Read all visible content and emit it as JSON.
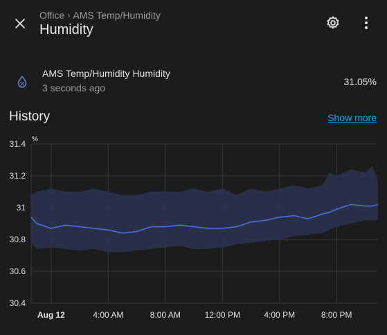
{
  "header": {
    "breadcrumb": [
      "Office",
      "AMS Temp/Humidity"
    ],
    "breadcrumb_separator": "›",
    "title": "Humidity"
  },
  "entity": {
    "icon": "water-percent-icon",
    "name": "AMS Temp/Humidity Humidity",
    "last_changed": "3 seconds ago",
    "state": "31.05%"
  },
  "history": {
    "title": "History",
    "show_more_label": "Show more"
  },
  "colors": {
    "accent": "#03a9f4",
    "series_line": "#4a6fdc",
    "series_band": "#2b3350",
    "icon": "#5a8bd8"
  },
  "chart_data": {
    "type": "line",
    "unit_label": "%",
    "ylim": [
      30.4,
      31.4
    ],
    "y_ticks": [
      "31.4",
      "31.2",
      "31",
      "30.8",
      "30.6",
      "30.4"
    ],
    "y_tick_values": [
      31.4,
      31.2,
      31.0,
      30.8,
      30.6,
      30.4
    ],
    "x_ticks": [
      "Aug 12",
      "4:00 AM",
      "8:00 AM",
      "12:00 PM",
      "4:00 PM",
      "8:00 PM"
    ],
    "x_tick_hours": [
      0,
      4,
      8,
      12,
      16,
      20
    ],
    "x_range_hours": [
      -1.4,
      22.9
    ],
    "grid": true,
    "series": [
      {
        "hours": [
          -1.4,
          -1.0,
          0,
          1,
          2,
          3,
          4,
          5,
          6,
          7,
          8,
          9,
          10,
          11,
          12,
          13,
          14,
          15,
          16,
          17,
          18,
          19,
          19.5,
          20,
          21,
          22,
          22.5,
          22.9
        ],
        "mean": [
          30.94,
          30.9,
          30.87,
          30.89,
          30.88,
          30.87,
          30.86,
          30.84,
          30.85,
          30.88,
          30.88,
          30.89,
          30.88,
          30.87,
          30.87,
          30.88,
          30.91,
          30.92,
          30.94,
          30.95,
          30.93,
          30.96,
          30.97,
          30.99,
          31.02,
          31.01,
          31.01,
          31.02
        ],
        "max": [
          31.08,
          31.1,
          31.12,
          31.1,
          31.1,
          31.12,
          31.1,
          31.08,
          31.08,
          31.1,
          31.1,
          31.1,
          31.12,
          31.1,
          31.12,
          31.08,
          31.12,
          31.1,
          31.12,
          31.14,
          31.12,
          31.14,
          31.22,
          31.2,
          31.24,
          31.22,
          31.26,
          31.16
        ],
        "min": [
          30.78,
          30.74,
          30.75,
          30.74,
          30.73,
          30.74,
          30.72,
          30.72,
          30.73,
          30.74,
          30.75,
          30.76,
          30.74,
          30.74,
          30.75,
          30.77,
          30.78,
          30.79,
          30.8,
          30.82,
          30.83,
          30.84,
          30.86,
          30.88,
          30.9,
          30.92,
          30.92,
          30.92
        ]
      }
    ]
  }
}
